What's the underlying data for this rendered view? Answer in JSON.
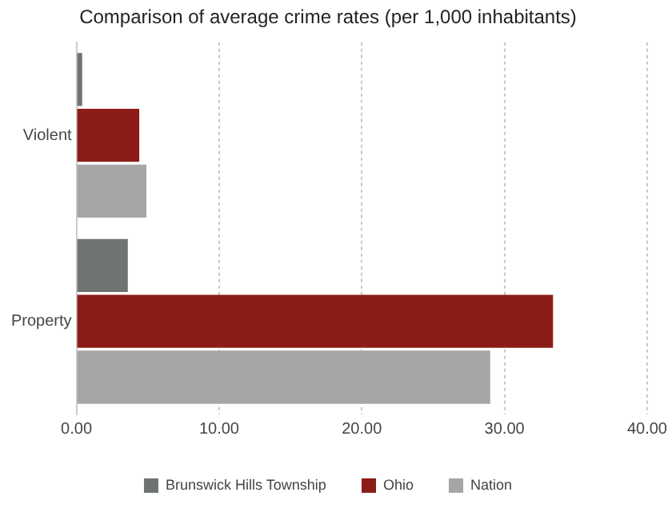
{
  "chart_data": {
    "type": "bar",
    "orientation": "horizontal",
    "title": "Comparison of average crime rates (per 1,000 inhabitants)",
    "categories": [
      "Violent",
      "Property"
    ],
    "series": [
      {
        "name": "Brunswick Hills Township",
        "color": "#6f7471",
        "values": [
          0.4,
          3.6
        ]
      },
      {
        "name": "Ohio",
        "color": "#8c1c17",
        "values": [
          4.4,
          33.4
        ]
      },
      {
        "name": "Nation",
        "color": "#a6a6a6",
        "values": [
          4.9,
          29.0
        ]
      }
    ],
    "xlim": [
      0,
      40
    ],
    "xticks": [
      {
        "value": 0,
        "label": "0.00"
      },
      {
        "value": 10,
        "label": "10.00"
      },
      {
        "value": 20,
        "label": "20.00"
      },
      {
        "value": 30,
        "label": "30.00"
      },
      {
        "value": 40,
        "label": "40.00"
      }
    ],
    "grid": "x",
    "legend": "bottom"
  }
}
